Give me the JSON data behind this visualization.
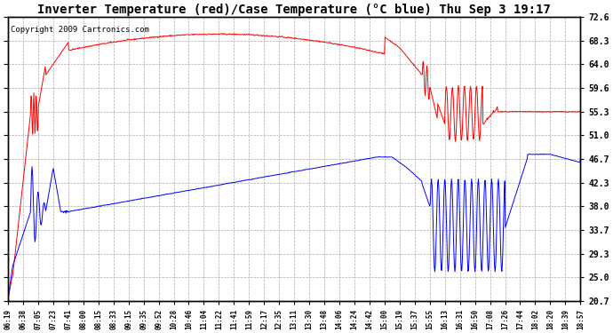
{
  "title": "Inverter Temperature (red)/Case Temperature (°C blue) Thu Sep 3 19:17",
  "copyright": "Copyright 2009 Cartronics.com",
  "ylabel_right_ticks": [
    20.7,
    25.0,
    29.3,
    33.7,
    38.0,
    42.3,
    46.7,
    51.0,
    55.3,
    59.6,
    64.0,
    68.3,
    72.6
  ],
  "ylim": [
    20.7,
    72.6
  ],
  "x_labels": [
    "06:19",
    "06:38",
    "07:05",
    "07:23",
    "07:41",
    "08:00",
    "08:15",
    "08:33",
    "09:15",
    "09:35",
    "09:52",
    "10:28",
    "10:46",
    "11:04",
    "11:22",
    "11:41",
    "11:59",
    "12:17",
    "12:35",
    "13:11",
    "13:30",
    "13:48",
    "14:06",
    "14:24",
    "14:42",
    "15:00",
    "15:19",
    "15:37",
    "15:55",
    "16:13",
    "16:31",
    "16:50",
    "17:08",
    "17:26",
    "17:44",
    "18:02",
    "18:20",
    "18:39",
    "18:57"
  ],
  "background_color": "#ffffff",
  "plot_bg_color": "#ffffff",
  "grid_color": "#aaaaaa",
  "red_color": "#ff0000",
  "blue_color": "#0000ff",
  "title_fontsize": 10,
  "copyright_fontsize": 6.5
}
